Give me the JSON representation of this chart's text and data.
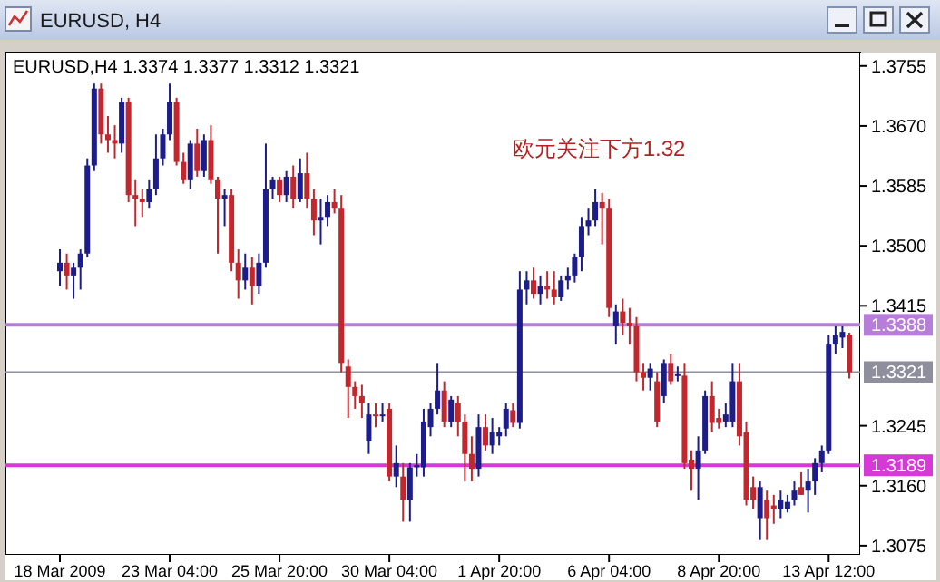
{
  "chart_data": {
    "type": "candlestick",
    "title": "EURUSD, H4",
    "subtitle": "EURUSD,H4  1.3374 1.3377 1.3312 1.3321",
    "annotations": [
      "欧元关注下方1.32"
    ],
    "categories": [
      "18 Mar 2009",
      null,
      null,
      null,
      null,
      null,
      null,
      null,
      null,
      null,
      null,
      null,
      null,
      null,
      null,
      null,
      "23 Mar 04:00",
      null,
      null,
      null,
      null,
      null,
      null,
      null,
      null,
      null,
      null,
      null,
      null,
      null,
      null,
      null,
      "25 Mar 20:00",
      null,
      null,
      null,
      null,
      null,
      null,
      null,
      null,
      null,
      null,
      null,
      null,
      null,
      null,
      null,
      "30 Mar 04:00",
      null,
      null,
      null,
      null,
      null,
      null,
      null,
      null,
      null,
      null,
      null,
      null,
      null,
      null,
      null,
      "1 Apr 20:00",
      null,
      null,
      null,
      null,
      null,
      null,
      null,
      null,
      null,
      null,
      null,
      null,
      null,
      null,
      null,
      "6 Apr 04:00",
      null,
      null,
      null,
      null,
      null,
      null,
      null,
      null,
      null,
      null,
      null,
      null,
      null,
      null,
      null,
      "8 Apr 20:00",
      null,
      null,
      null,
      null,
      null,
      null,
      null,
      null,
      null,
      null,
      null,
      null,
      null,
      null,
      null,
      "13 Apr 12:00",
      null,
      null,
      null
    ],
    "ohlc": [
      [
        1.3464,
        1.3495,
        1.3443,
        1.3476
      ],
      [
        1.3476,
        1.3489,
        1.3438,
        1.3458
      ],
      [
        1.3458,
        1.3476,
        1.3425,
        1.3469
      ],
      [
        1.3469,
        1.3495,
        1.3438,
        1.3489
      ],
      [
        1.3489,
        1.3624,
        1.3484,
        1.3614
      ],
      [
        1.3614,
        1.373,
        1.3606,
        1.3723
      ],
      [
        1.3723,
        1.373,
        1.3645,
        1.3658
      ],
      [
        1.3658,
        1.3684,
        1.3632,
        1.365
      ],
      [
        1.365,
        1.3671,
        1.3624,
        1.3645
      ],
      [
        1.3645,
        1.371,
        1.3632,
        1.3704
      ],
      [
        1.3704,
        1.371,
        1.3562,
        1.3572
      ],
      [
        1.3572,
        1.3593,
        1.3528,
        1.3567
      ],
      [
        1.3567,
        1.358,
        1.3541,
        1.3562
      ],
      [
        1.3562,
        1.3593,
        1.3554,
        1.358
      ],
      [
        1.358,
        1.3658,
        1.3572,
        1.3624
      ],
      [
        1.3624,
        1.3666,
        1.3614,
        1.3658
      ],
      [
        1.3658,
        1.373,
        1.365,
        1.3704
      ],
      [
        1.3704,
        1.371,
        1.3614,
        1.3619
      ],
      [
        1.3619,
        1.3632,
        1.3588,
        1.3593
      ],
      [
        1.3593,
        1.365,
        1.358,
        1.3645
      ],
      [
        1.3645,
        1.3666,
        1.3598,
        1.3606
      ],
      [
        1.3606,
        1.3658,
        1.3598,
        1.365
      ],
      [
        1.365,
        1.3671,
        1.3588,
        1.3593
      ],
      [
        1.3593,
        1.3598,
        1.3489,
        1.3567
      ],
      [
        1.3567,
        1.358,
        1.3528,
        1.3572
      ],
      [
        1.3572,
        1.358,
        1.3464,
        1.3476
      ],
      [
        1.3476,
        1.3495,
        1.3425,
        1.3451
      ],
      [
        1.3451,
        1.3489,
        1.3438,
        1.3469
      ],
      [
        1.3469,
        1.3484,
        1.3417,
        1.3443
      ],
      [
        1.3443,
        1.3489,
        1.3432,
        1.3476
      ],
      [
        1.3476,
        1.3645,
        1.3469,
        1.358
      ],
      [
        1.358,
        1.3598,
        1.3567,
        1.3593
      ],
      [
        1.3593,
        1.3598,
        1.3562,
        1.3572
      ],
      [
        1.3572,
        1.3606,
        1.3562,
        1.3598
      ],
      [
        1.3598,
        1.3614,
        1.3554,
        1.3567
      ],
      [
        1.3567,
        1.3624,
        1.3562,
        1.3603
      ],
      [
        1.3603,
        1.3632,
        1.3554,
        1.3567
      ],
      [
        1.3567,
        1.358,
        1.3515,
        1.3536
      ],
      [
        1.3536,
        1.3567,
        1.3502,
        1.3541
      ],
      [
        1.3541,
        1.3572,
        1.3528,
        1.3562
      ],
      [
        1.3562,
        1.358,
        1.3546,
        1.3554
      ],
      [
        1.3554,
        1.3572,
        1.3321,
        1.3334
      ],
      [
        1.3329,
        1.3339,
        1.3256,
        1.33
      ],
      [
        1.33,
        1.3308,
        1.3269,
        1.3287
      ],
      [
        1.3287,
        1.3303,
        1.3256,
        1.3277
      ],
      [
        1.3223,
        1.3277,
        1.3205,
        1.3261
      ],
      [
        1.3261,
        1.3277,
        1.3243,
        1.3259
      ],
      [
        1.3259,
        1.3277,
        1.3251,
        1.3261
      ],
      [
        1.3269,
        1.3277,
        1.3166,
        1.3173
      ],
      [
        1.3173,
        1.3217,
        1.3158,
        1.3192
      ],
      [
        1.3173,
        1.3192,
        1.3109,
        1.314
      ],
      [
        1.314,
        1.3192,
        1.3109,
        1.3186
      ],
      [
        1.3186,
        1.3205,
        1.3173,
        1.3189
      ],
      [
        1.3186,
        1.3269,
        1.3173,
        1.3251
      ],
      [
        1.3243,
        1.3277,
        1.323,
        1.3269
      ],
      [
        1.3269,
        1.3334,
        1.3261,
        1.3295
      ],
      [
        1.3295,
        1.3308,
        1.3243,
        1.3251
      ],
      [
        1.3251,
        1.3287,
        1.3243,
        1.3282
      ],
      [
        1.3277,
        1.3287,
        1.323,
        1.3251
      ],
      [
        1.3251,
        1.3261,
        1.3166,
        1.3205
      ],
      [
        1.3205,
        1.323,
        1.3166,
        1.3184
      ],
      [
        1.3184,
        1.3261,
        1.3173,
        1.3243
      ],
      [
        1.3243,
        1.3261,
        1.321,
        1.3217
      ],
      [
        1.3217,
        1.3256,
        1.3205,
        1.3236
      ],
      [
        1.323,
        1.3243,
        1.3217,
        1.3236
      ],
      [
        1.3241,
        1.3277,
        1.323,
        1.3269
      ],
      [
        1.3267,
        1.3277,
        1.3243,
        1.3249
      ],
      [
        1.3249,
        1.3464,
        1.3241,
        1.3438
      ],
      [
        1.3438,
        1.3464,
        1.3417,
        1.3451
      ],
      [
        1.3451,
        1.3469,
        1.3425,
        1.3432
      ],
      [
        1.3432,
        1.3458,
        1.3417,
        1.3443
      ],
      [
        1.3443,
        1.3464,
        1.3425,
        1.3438
      ],
      [
        1.3438,
        1.3464,
        1.3417,
        1.3427
      ],
      [
        1.3427,
        1.3458,
        1.3422,
        1.3451
      ],
      [
        1.3451,
        1.3469,
        1.3438,
        1.3458
      ],
      [
        1.3458,
        1.3489,
        1.3448,
        1.3484
      ],
      [
        1.3484,
        1.3541,
        1.3464,
        1.3528
      ],
      [
        1.3528,
        1.3554,
        1.3515,
        1.3536
      ],
      [
        1.3536,
        1.358,
        1.3528,
        1.3562
      ],
      [
        1.3562,
        1.3575,
        1.3502,
        1.3554
      ],
      [
        1.3554,
        1.3567,
        1.3399,
        1.3412
      ],
      [
        1.3386,
        1.3417,
        1.336,
        1.3407
      ],
      [
        1.3407,
        1.3425,
        1.3373,
        1.3391
      ],
      [
        1.3391,
        1.3412,
        1.336,
        1.3386
      ],
      [
        1.3386,
        1.3399,
        1.3308,
        1.3321
      ],
      [
        1.3321,
        1.3334,
        1.3295,
        1.3313
      ],
      [
        1.3313,
        1.3334,
        1.3295,
        1.3326
      ],
      [
        1.3308,
        1.3321,
        1.3243,
        1.3251
      ],
      [
        1.3287,
        1.3339,
        1.3277,
        1.3334
      ],
      [
        1.3334,
        1.3347,
        1.3303,
        1.3308
      ],
      [
        1.3316,
        1.3329,
        1.3308,
        1.3318
      ],
      [
        1.3316,
        1.3334,
        1.3184,
        1.3192
      ],
      [
        1.3197,
        1.321,
        1.3153,
        1.3184
      ],
      [
        1.3184,
        1.323,
        1.314,
        1.321
      ],
      [
        1.321,
        1.3295,
        1.3205,
        1.3287
      ],
      [
        1.3287,
        1.3308,
        1.3236,
        1.3249
      ],
      [
        1.3256,
        1.3269,
        1.3241,
        1.3249
      ],
      [
        1.3251,
        1.3277,
        1.3243,
        1.3261
      ],
      [
        1.3251,
        1.3334,
        1.3243,
        1.3308
      ],
      [
        1.3308,
        1.3334,
        1.3217,
        1.323
      ],
      [
        1.3236,
        1.3251,
        1.3132,
        1.314
      ],
      [
        1.3158,
        1.3173,
        1.3127,
        1.314
      ],
      [
        1.3114,
        1.3166,
        1.3083,
        1.3158
      ],
      [
        1.314,
        1.3153,
        1.3083,
        1.3114
      ],
      [
        1.3132,
        1.3147,
        1.3106,
        1.3127
      ],
      [
        1.3127,
        1.3153,
        1.3114,
        1.314
      ],
      [
        1.3127,
        1.3147,
        1.3122,
        1.3137
      ],
      [
        1.314,
        1.3166,
        1.3132,
        1.3153
      ],
      [
        1.3158,
        1.3179,
        1.3147,
        1.3147
      ],
      [
        1.3153,
        1.3184,
        1.3122,
        1.3166
      ],
      [
        1.3166,
        1.3199,
        1.3147,
        1.3192
      ],
      [
        1.3192,
        1.3217,
        1.3179,
        1.321
      ],
      [
        1.321,
        1.3373,
        1.3205,
        1.336
      ],
      [
        1.336,
        1.3386,
        1.3347,
        1.3373
      ],
      [
        1.337,
        1.3386,
        1.3355,
        1.3378
      ],
      [
        1.3374,
        1.3377,
        1.3312,
        1.3321
      ]
    ],
    "colors": [
      "#1c1c8a",
      "#c1272d",
      "#1c1c8a",
      "#1c1c8a",
      "#1c1c8a",
      "#1c1c8a",
      "#c1272d",
      "#c1272d",
      "#c1272d",
      "#1c1c8a",
      "#c1272d",
      "#c1272d",
      "#c1272d",
      "#1c1c8a",
      "#1c1c8a",
      "#1c1c8a",
      "#1c1c8a",
      "#c1272d",
      "#c1272d",
      "#1c1c8a",
      "#c1272d",
      "#1c1c8a",
      "#c1272d",
      "#c1272d",
      "#1c1c8a",
      "#c1272d",
      "#c1272d",
      "#1c1c8a",
      "#c1272d",
      "#1c1c8a",
      "#1c1c8a",
      "#1c1c8a",
      "#c1272d",
      "#1c1c8a",
      "#c1272d",
      "#1c1c8a",
      "#c1272d",
      "#c1272d",
      "#1c1c8a",
      "#1c1c8a",
      "#c1272d",
      "#c1272d",
      "#c1272d",
      "#c1272d",
      "#c1272d",
      "#1c1c8a",
      "#c1272d",
      "#1c1c8a",
      "#c1272d",
      "#1c1c8a",
      "#c1272d",
      "#1c1c8a",
      "#1c1c8a",
      "#1c1c8a",
      "#1c1c8a",
      "#1c1c8a",
      "#c1272d",
      "#1c1c8a",
      "#c1272d",
      "#c1272d",
      "#c1272d",
      "#1c1c8a",
      "#c1272d",
      "#1c1c8a",
      "#1c1c8a",
      "#1c1c8a",
      "#c1272d",
      "#1c1c8a",
      "#1c1c8a",
      "#c1272d",
      "#1c1c8a",
      "#c1272d",
      "#c1272d",
      "#1c1c8a",
      "#1c1c8a",
      "#1c1c8a",
      "#1c1c8a",
      "#1c1c8a",
      "#1c1c8a",
      "#c1272d",
      "#c1272d",
      "#1c1c8a",
      "#c1272d",
      "#c1272d",
      "#c1272d",
      "#c1272d",
      "#1c1c8a",
      "#c1272d",
      "#1c1c8a",
      "#c1272d",
      "#1c1c8a",
      "#c1272d",
      "#c1272d",
      "#1c1c8a",
      "#1c1c8a",
      "#c1272d",
      "#c1272d",
      "#1c1c8a",
      "#1c1c8a",
      "#c1272d",
      "#c1272d",
      "#c1272d",
      "#1c1c8a",
      "#c1272d",
      "#c1272d",
      "#1c1c8a",
      "#1c1c8a",
      "#1c1c8a",
      "#c1272d",
      "#1c1c8a",
      "#1c1c8a",
      "#1c1c8a",
      "#1c1c8a",
      "#1c1c8a",
      "#1c1c8a",
      "#c1272d"
    ],
    "ylim": [
      1.3062,
      1.3774
    ],
    "yticks": [
      1.3755,
      {
        "value": 1.367,
        "label": "1.3670"
      },
      1.3585,
      {
        "value": 1.35,
        "label": "1.3500"
      },
      1.3415,
      1.3245,
      {
        "value": 1.316,
        "label": "1.3160"
      },
      1.3075
    ],
    "ref_lines": [
      {
        "axis": "y",
        "value": 1.3388,
        "label": "1.3388",
        "color": "#b67ed8"
      },
      {
        "axis": "y",
        "value": 1.3321,
        "label": "1.3321",
        "color": "#8e8e9c"
      },
      {
        "axis": "y",
        "value": 1.3189,
        "label": "1.3189",
        "color": "#d53ad6"
      }
    ],
    "grid": false
  }
}
